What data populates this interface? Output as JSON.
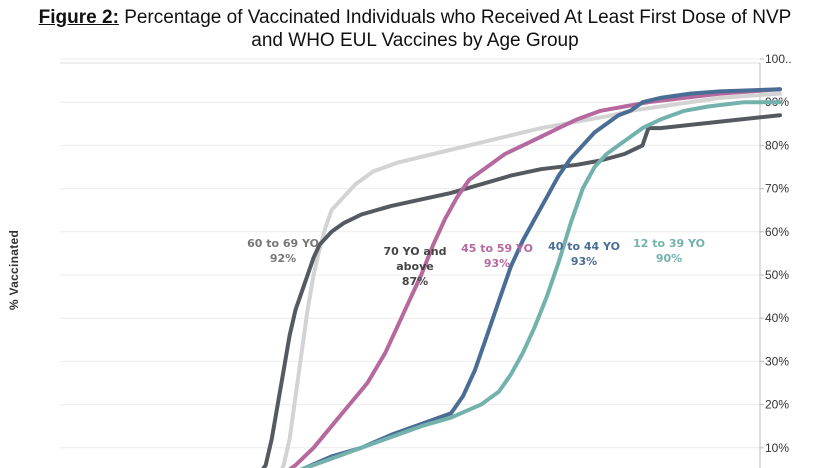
{
  "title": {
    "figure_label": "Figure 2:",
    "line1": "Percentage of Vaccinated Individuals who Received At Least First Dose of NVP",
    "line2": "and WHO EUL Vaccines by Age Group"
  },
  "chart_data": {
    "type": "line",
    "ylabel": "% Vaccinated",
    "ylim": [
      0,
      100
    ],
    "yticks": [
      "10%",
      "20%",
      "30%",
      "40%",
      "50%",
      "60%",
      "70%",
      "80%",
      "90%",
      "100.."
    ],
    "grid": true,
    "series": [
      {
        "name": "60 to 69 YO",
        "final_label": "92%",
        "color": "#d3d3d3",
        "points": [
          [
            0,
            0
          ],
          [
            10,
            0.5
          ],
          [
            13,
            1
          ],
          [
            16,
            3
          ],
          [
            17,
            6
          ],
          [
            18,
            12
          ],
          [
            19,
            22
          ],
          [
            20,
            32
          ],
          [
            21,
            42
          ],
          [
            22,
            50
          ],
          [
            23,
            56
          ],
          [
            24,
            61
          ],
          [
            25,
            65
          ],
          [
            27,
            68
          ],
          [
            29,
            71
          ],
          [
            32,
            74
          ],
          [
            36,
            76
          ],
          [
            42,
            78
          ],
          [
            48,
            80
          ],
          [
            54,
            82
          ],
          [
            60,
            84
          ],
          [
            64,
            85
          ],
          [
            68,
            86
          ],
          [
            72,
            87
          ],
          [
            75,
            88
          ],
          [
            80,
            89
          ],
          [
            85,
            90
          ],
          [
            90,
            91
          ],
          [
            100,
            92
          ]
        ]
      },
      {
        "name": "70 YO and above",
        "final_label": "87%",
        "color": "#555a60",
        "points": [
          [
            0,
            0
          ],
          [
            10,
            0.5
          ],
          [
            12,
            2
          ],
          [
            14,
            6
          ],
          [
            15,
            12
          ],
          [
            16,
            20
          ],
          [
            17,
            28
          ],
          [
            18,
            36
          ],
          [
            19,
            42
          ],
          [
            20,
            46
          ],
          [
            21,
            50
          ],
          [
            22,
            54
          ],
          [
            23,
            57
          ],
          [
            25,
            60
          ],
          [
            27,
            62
          ],
          [
            30,
            64
          ],
          [
            35,
            66
          ],
          [
            40,
            67.5
          ],
          [
            45,
            69
          ],
          [
            50,
            71
          ],
          [
            55,
            73
          ],
          [
            60,
            74.5
          ],
          [
            66,
            75.5
          ],
          [
            70,
            76.5
          ],
          [
            74,
            78
          ],
          [
            77,
            80
          ],
          [
            78,
            84
          ],
          [
            80,
            84
          ],
          [
            90,
            85.5
          ],
          [
            100,
            87
          ]
        ]
      },
      {
        "name": "45 to 59 YO",
        "final_label": "93%",
        "color": "#b5699f",
        "points": [
          [
            0,
            0
          ],
          [
            10,
            0.5
          ],
          [
            13,
            1
          ],
          [
            16,
            3
          ],
          [
            19,
            6
          ],
          [
            22,
            10
          ],
          [
            25,
            15
          ],
          [
            28,
            20
          ],
          [
            31,
            25
          ],
          [
            34,
            32
          ],
          [
            36,
            38
          ],
          [
            38,
            44
          ],
          [
            40,
            50
          ],
          [
            42,
            57
          ],
          [
            44,
            63
          ],
          [
            46,
            68
          ],
          [
            48,
            72
          ],
          [
            51,
            75
          ],
          [
            54,
            78
          ],
          [
            57,
            80
          ],
          [
            60,
            82
          ],
          [
            63,
            84
          ],
          [
            66,
            86
          ],
          [
            70,
            88
          ],
          [
            74,
            89
          ],
          [
            78,
            90
          ],
          [
            84,
            91
          ],
          [
            90,
            92
          ],
          [
            100,
            93
          ]
        ]
      },
      {
        "name": "40 to 44 YO",
        "final_label": "93%",
        "color": "#4a6d95",
        "points": [
          [
            0,
            0
          ],
          [
            10,
            0.5
          ],
          [
            14,
            2
          ],
          [
            20,
            5
          ],
          [
            25,
            8
          ],
          [
            30,
            10
          ],
          [
            35,
            13
          ],
          [
            40,
            15.5
          ],
          [
            45,
            18
          ],
          [
            47,
            22
          ],
          [
            49,
            28
          ],
          [
            51,
            36
          ],
          [
            53,
            44
          ],
          [
            55,
            52
          ],
          [
            57,
            58
          ],
          [
            59,
            63
          ],
          [
            61,
            68
          ],
          [
            63,
            73
          ],
          [
            65,
            77
          ],
          [
            67,
            80
          ],
          [
            69,
            83
          ],
          [
            71,
            85
          ],
          [
            73,
            87
          ],
          [
            75,
            88
          ],
          [
            77,
            90
          ],
          [
            80,
            91
          ],
          [
            85,
            92
          ],
          [
            90,
            92.5
          ],
          [
            100,
            93
          ]
        ]
      },
      {
        "name": "12 to 39 YO",
        "final_label": "90%",
        "color": "#73b2ac",
        "points": [
          [
            0,
            0
          ],
          [
            10,
            0.5
          ],
          [
            14,
            2
          ],
          [
            20,
            5
          ],
          [
            25,
            7.5
          ],
          [
            30,
            10
          ],
          [
            35,
            12.5
          ],
          [
            40,
            15
          ],
          [
            45,
            17
          ],
          [
            50,
            20
          ],
          [
            53,
            23
          ],
          [
            55,
            27
          ],
          [
            57,
            32
          ],
          [
            59,
            38
          ],
          [
            61,
            45
          ],
          [
            63,
            53
          ],
          [
            65,
            62
          ],
          [
            67,
            70
          ],
          [
            69,
            75
          ],
          [
            71,
            78
          ],
          [
            73,
            80
          ],
          [
            75,
            82
          ],
          [
            77,
            84
          ],
          [
            80,
            86
          ],
          [
            84,
            88
          ],
          [
            88,
            89
          ],
          [
            94,
            90
          ],
          [
            100,
            90
          ]
        ]
      }
    ]
  }
}
